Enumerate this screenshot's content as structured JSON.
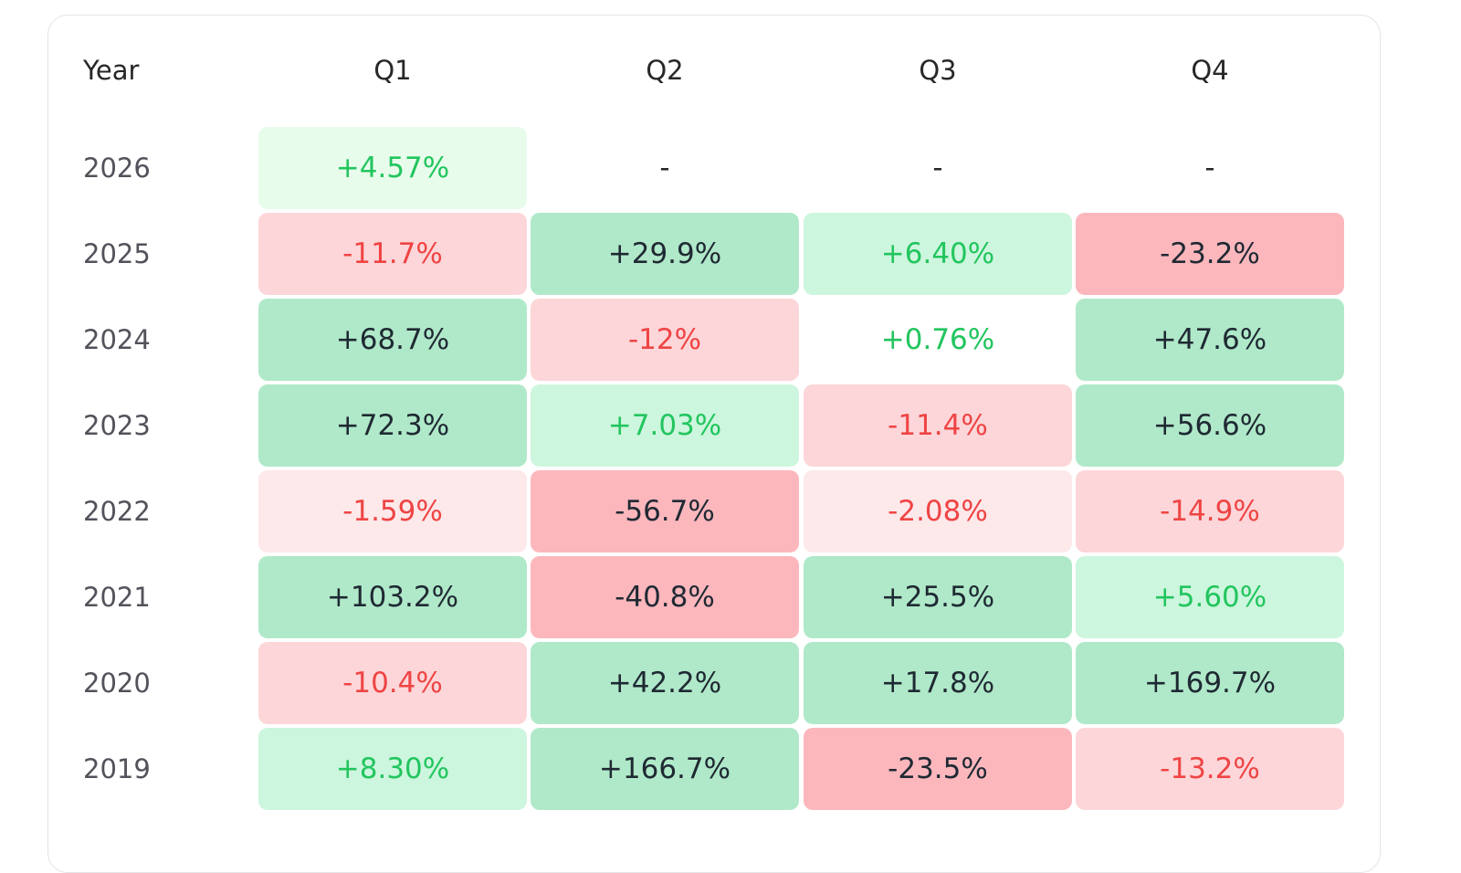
{
  "table": {
    "headers": [
      "Year",
      "Q1",
      "Q2",
      "Q3",
      "Q4"
    ],
    "rows": [
      {
        "year": "2026",
        "cells": [
          {
            "value": "+4.57%",
            "tone": "g-weak"
          },
          {
            "value": "-",
            "tone": "neutral"
          },
          {
            "value": "-",
            "tone": "neutral"
          },
          {
            "value": "-",
            "tone": "neutral"
          }
        ]
      },
      {
        "year": "2025",
        "cells": [
          {
            "value": "-11.7%",
            "tone": "r-mid"
          },
          {
            "value": "+29.9%",
            "tone": "g-strong"
          },
          {
            "value": "+6.40%",
            "tone": "g-mid"
          },
          {
            "value": "-23.2%",
            "tone": "r-strong"
          }
        ]
      },
      {
        "year": "2024",
        "cells": [
          {
            "value": "+68.7%",
            "tone": "g-strong"
          },
          {
            "value": "-12%",
            "tone": "r-mid"
          },
          {
            "value": "+0.76%",
            "tone": "flat"
          },
          {
            "value": "+47.6%",
            "tone": "g-strong"
          }
        ]
      },
      {
        "year": "2023",
        "cells": [
          {
            "value": "+72.3%",
            "tone": "g-strong"
          },
          {
            "value": "+7.03%",
            "tone": "g-mid"
          },
          {
            "value": "-11.4%",
            "tone": "r-mid"
          },
          {
            "value": "+56.6%",
            "tone": "g-strong"
          }
        ]
      },
      {
        "year": "2022",
        "cells": [
          {
            "value": "-1.59%",
            "tone": "r-weak"
          },
          {
            "value": "-56.7%",
            "tone": "r-strong"
          },
          {
            "value": "-2.08%",
            "tone": "r-weak"
          },
          {
            "value": "-14.9%",
            "tone": "r-mid"
          }
        ]
      },
      {
        "year": "2021",
        "cells": [
          {
            "value": "+103.2%",
            "tone": "g-strong"
          },
          {
            "value": "-40.8%",
            "tone": "r-strong"
          },
          {
            "value": "+25.5%",
            "tone": "g-strong"
          },
          {
            "value": "+5.60%",
            "tone": "g-mid"
          }
        ]
      },
      {
        "year": "2020",
        "cells": [
          {
            "value": "-10.4%",
            "tone": "r-mid"
          },
          {
            "value": "+42.2%",
            "tone": "g-strong"
          },
          {
            "value": "+17.8%",
            "tone": "g-strong"
          },
          {
            "value": "+169.7%",
            "tone": "g-strong"
          }
        ]
      },
      {
        "year": "2019",
        "cells": [
          {
            "value": "+8.30%",
            "tone": "g-mid"
          },
          {
            "value": "+166.7%",
            "tone": "g-strong"
          },
          {
            "value": "-23.5%",
            "tone": "r-strong"
          },
          {
            "value": "-13.2%",
            "tone": "r-mid"
          }
        ]
      }
    ]
  },
  "colors": {
    "positive_text": "#22c55e",
    "negative_text": "#ef4444",
    "strong_text": "#1f2933",
    "green_weak": "#e8fcec",
    "green_mid": "#cdf6de",
    "green_strong": "#b0e9c9",
    "red_weak": "#fde8ea",
    "red_mid": "#fdd6d9",
    "red_strong": "#fcb7bd"
  }
}
